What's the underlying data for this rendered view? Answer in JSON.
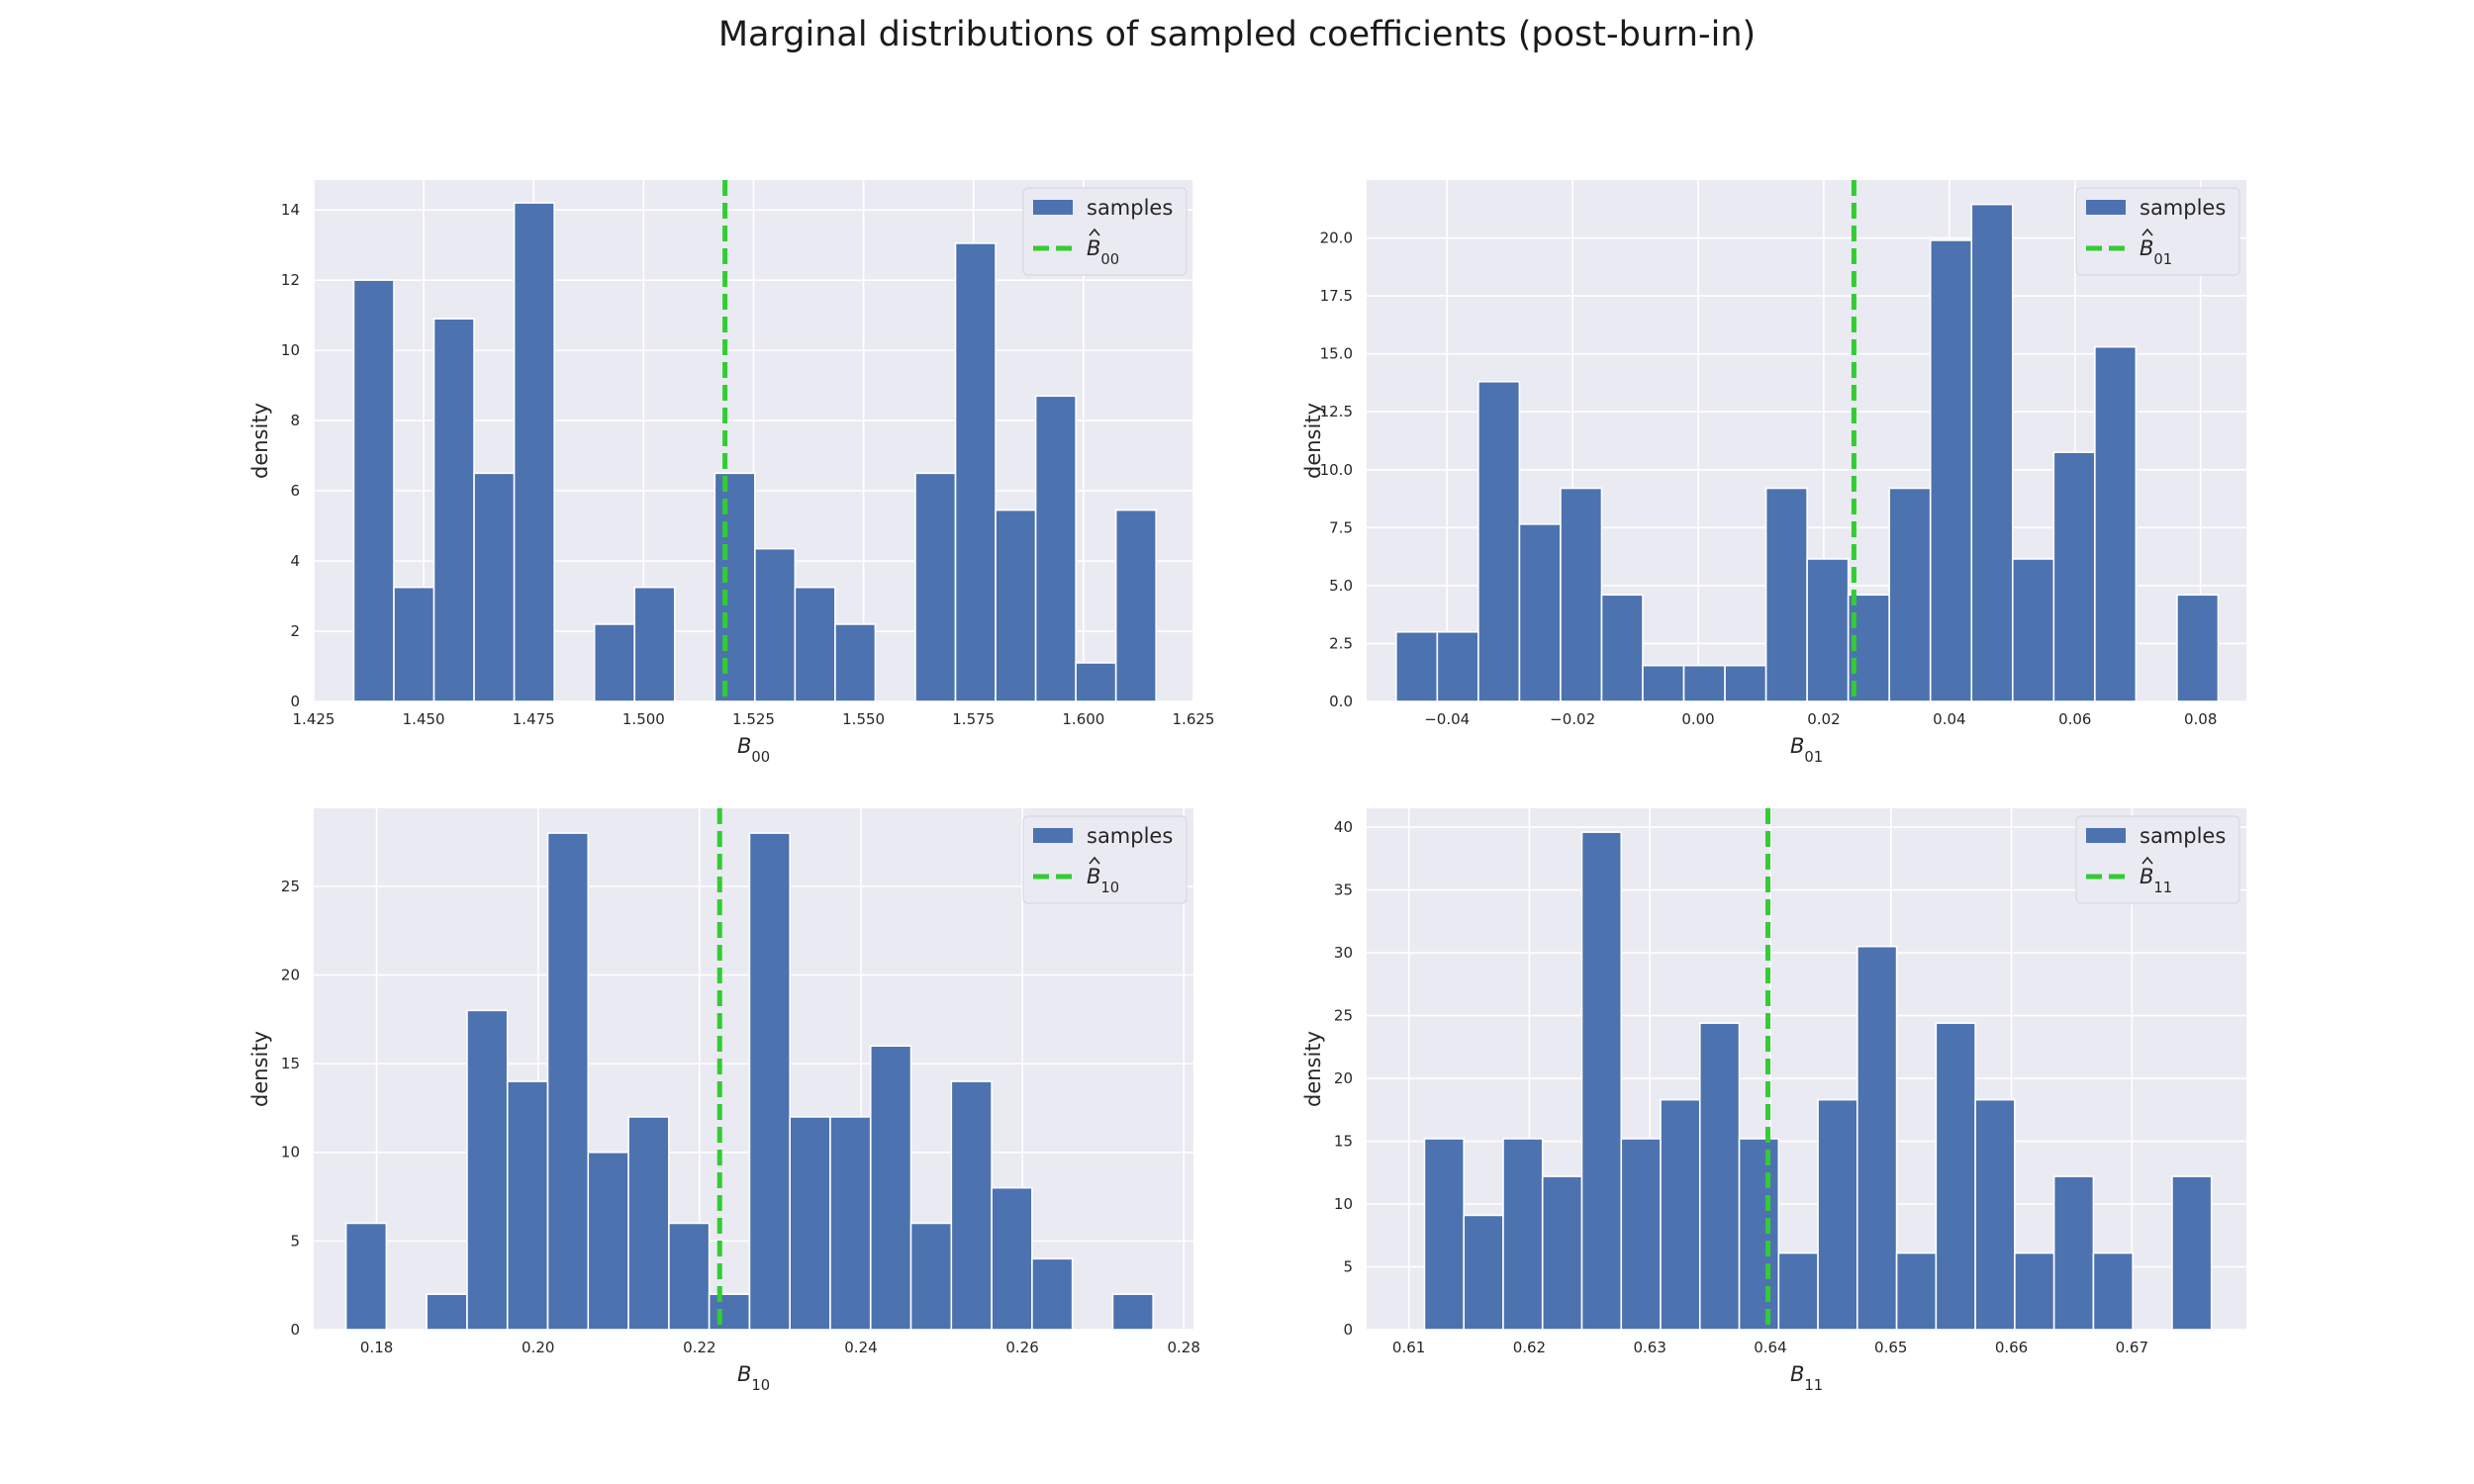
{
  "title": "Marginal distributions of sampled coefficients (post-burn-in)",
  "colors": {
    "bars": "#4c72b0",
    "estimate": "#33cc33",
    "panel_bg": "#eaeaf2",
    "grid": "#ffffff"
  },
  "legend": {
    "samples_label": "samples"
  },
  "chart_data": [
    {
      "type": "bar",
      "xlabel": {
        "base": "B",
        "sub": "00"
      },
      "ylabel": "density",
      "estimate_label": {
        "base": "B",
        "hat": true,
        "sub": "00"
      },
      "estimate_value": 1.5185,
      "xlim": [
        1.425,
        1.625
      ],
      "ylim": [
        0,
        14.85
      ],
      "xticks": [
        "1.425",
        "1.450",
        "1.475",
        "1.500",
        "1.525",
        "1.550",
        "1.575",
        "1.600",
        "1.625"
      ],
      "yticks": [
        "0",
        "2",
        "4",
        "6",
        "8",
        "10",
        "12",
        "14"
      ],
      "bin_start": 1.4341,
      "bin_width": 0.00912,
      "values": [
        12.0,
        3.25,
        10.9,
        6.5,
        14.2,
        0,
        2.2,
        3.25,
        0,
        6.5,
        4.35,
        3.25,
        2.2,
        0,
        6.5,
        13.05,
        5.45,
        8.7,
        1.1,
        5.45
      ]
    },
    {
      "type": "bar",
      "xlabel": {
        "base": "B",
        "sub": "01"
      },
      "ylabel": "density",
      "estimate_label": {
        "base": "B",
        "hat": true,
        "sub": "01"
      },
      "estimate_value": 0.0248,
      "xlim": [
        -0.0528,
        0.0873
      ],
      "ylim": [
        0,
        22.5
      ],
      "xticks": [
        "−0.04",
        "−0.02",
        "0.00",
        "0.02",
        "0.04",
        "0.06",
        "0.08"
      ],
      "yticks": [
        "0.0",
        "2.5",
        "5.0",
        "7.5",
        "10.0",
        "12.5",
        "15.0",
        "17.5",
        "20.0"
      ],
      "bin_start": -0.0481,
      "bin_width": 0.006545,
      "values": [
        3.0,
        3.0,
        13.8,
        7.65,
        9.2,
        4.6,
        1.55,
        1.55,
        1.55,
        9.2,
        6.15,
        4.6,
        9.2,
        19.9,
        21.45,
        6.15,
        10.75,
        15.3,
        0,
        4.6
      ]
    },
    {
      "type": "bar",
      "xlabel": {
        "base": "B",
        "sub": "10"
      },
      "ylabel": "density",
      "estimate_label": {
        "base": "B",
        "hat": true,
        "sub": "10"
      },
      "estimate_value": 0.2225,
      "xlim": [
        0.1722,
        0.2812
      ],
      "ylim": [
        0,
        29.4
      ],
      "xticks": [
        "0.18",
        "0.20",
        "0.22",
        "0.24",
        "0.26",
        "0.28"
      ],
      "yticks": [
        "0",
        "5",
        "10",
        "15",
        "20",
        "25"
      ],
      "bin_start": 0.1762,
      "bin_width": 0.005,
      "values": [
        6,
        0,
        2,
        18,
        14,
        28,
        10,
        12,
        6,
        2,
        28,
        12,
        12,
        16,
        6,
        14,
        8,
        4,
        0,
        2
      ]
    },
    {
      "type": "bar",
      "xlabel": {
        "base": "B",
        "sub": "11"
      },
      "ylabel": "density",
      "estimate_label": {
        "base": "B",
        "hat": true,
        "sub": "11"
      },
      "estimate_value": 0.6398,
      "xlim": [
        0.6065,
        0.6795
      ],
      "ylim": [
        0,
        41.5
      ],
      "xticks": [
        "0.61",
        "0.62",
        "0.63",
        "0.64",
        "0.65",
        "0.66",
        "0.67"
      ],
      "yticks": [
        "0",
        "5",
        "10",
        "15",
        "20",
        "25",
        "30",
        "35",
        "40"
      ],
      "bin_start": 0.6113,
      "bin_width": 0.003265,
      "values": [
        15.2,
        9.1,
        15.2,
        12.2,
        39.6,
        15.2,
        18.3,
        24.4,
        15.2,
        6.1,
        18.3,
        30.5,
        6.1,
        24.4,
        18.3,
        6.1,
        12.2,
        6.1,
        0,
        12.2
      ]
    }
  ]
}
